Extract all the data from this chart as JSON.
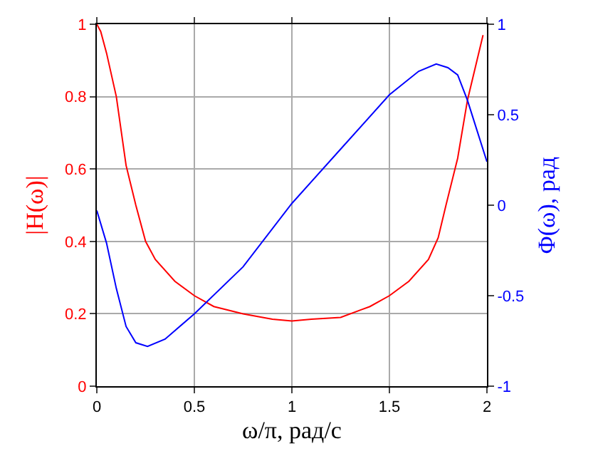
{
  "chart_data": {
    "type": "line",
    "xlabel": "ω/π, рад/с",
    "ylabel": "|H(ω)|",
    "y2label": "Φ(ω), рад",
    "series": [
      {
        "color": "#ff0000",
        "x": [
          0,
          0.02,
          0.05,
          0.1,
          0.15,
          0.2,
          0.25,
          0.3,
          0.4,
          0.5,
          0.6,
          0.75,
          0.9,
          1.0,
          1.1,
          1.25,
          1.4,
          1.5,
          1.6,
          1.7,
          1.75,
          1.79,
          1.85,
          1.9,
          1.98
        ],
        "values": [
          1.0,
          0.98,
          0.92,
          0.8,
          0.61,
          0.5,
          0.4,
          0.35,
          0.29,
          0.25,
          0.22,
          0.2,
          0.185,
          0.18,
          0.185,
          0.19,
          0.22,
          0.25,
          0.29,
          0.35,
          0.41,
          0.5,
          0.63,
          0.79,
          0.97
        ]
      },
      {
        "color": "#0000ff",
        "axis": "y2",
        "x": [
          0,
          0.05,
          0.1,
          0.15,
          0.2,
          0.26,
          0.35,
          0.5,
          0.75,
          1.0,
          1.25,
          1.5,
          1.65,
          1.74,
          1.8,
          1.85,
          1.9,
          1.95,
          2.0
        ],
        "values": [
          -0.03,
          -0.21,
          -0.46,
          -0.67,
          -0.76,
          -0.78,
          -0.74,
          -0.6,
          -0.34,
          0.01,
          0.31,
          0.61,
          0.74,
          0.78,
          0.76,
          0.72,
          0.58,
          0.41,
          0.24
        ]
      }
    ],
    "xlim": [
      0,
      2
    ],
    "xticks": [
      0,
      0.5,
      1,
      1.5,
      2
    ],
    "ylim": [
      0,
      1
    ],
    "yticks": [
      0,
      0.2,
      0.4,
      0.6,
      0.8,
      1
    ],
    "y2lim": [
      -1,
      1
    ],
    "y2ticks": [
      -1,
      -0.5,
      0,
      0.5,
      1
    ],
    "grid": true,
    "legend": false
  }
}
